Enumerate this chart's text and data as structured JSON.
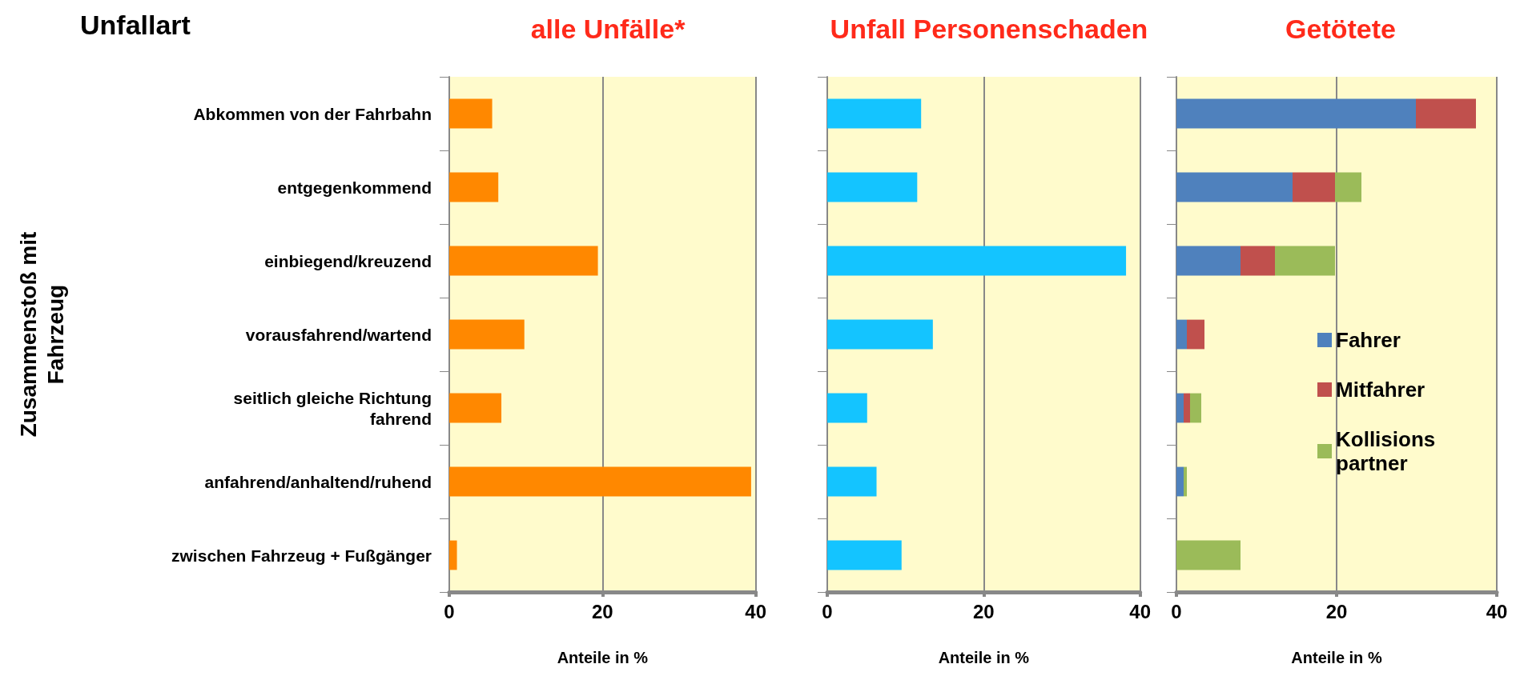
{
  "chart_data": [
    {
      "type": "bar",
      "orientation": "horizontal",
      "title": "alle Unfälle*",
      "ylabel": "Zusammenstoß mit\nFahrzeug",
      "xlabel": "Anteile in %",
      "annotations": [
        "Unfallart"
      ],
      "categories": [
        "Abkommen von der Fahrbahn",
        "entgegenkommend",
        "einbiegend/kreuzend",
        "vorausfahrend/wartend",
        "seitlich gleiche Richtung\nfahrend",
        "anfahrend/anhaltend/ruhend",
        "zwischen Fahrzeug + Fußgänger"
      ],
      "series": [
        {
          "color": "#ff8800",
          "values": [
            5.6,
            6.4,
            19.4,
            9.8,
            6.8,
            39.4,
            1.0
          ]
        }
      ],
      "xlim": [
        0,
        40
      ],
      "xticks": [
        0,
        20,
        40
      ],
      "grid": "x"
    },
    {
      "type": "bar",
      "orientation": "horizontal",
      "title": "Unfall Personenschaden",
      "xlabel": "Anteile in %",
      "tick_labels": "x",
      "categories": [
        null,
        null,
        null,
        null,
        null,
        null,
        null
      ],
      "series": [
        {
          "color": "#14c4ff",
          "values": [
            12.0,
            11.5,
            38.2,
            13.5,
            5.1,
            6.3,
            9.5
          ]
        }
      ],
      "xlim": [
        0,
        40
      ],
      "xticks": [
        0,
        20,
        40
      ],
      "grid": "x"
    },
    {
      "type": "bar",
      "orientation": "horizontal",
      "stacked": true,
      "title": "Getötete",
      "xlabel": "Anteile in %",
      "tick_labels": "x",
      "legend": "right",
      "categories": [
        null,
        null,
        null,
        null,
        null,
        null,
        null
      ],
      "series": [
        {
          "name": "Fahrer",
          "color": "#4f81bd",
          "values": [
            29.9,
            14.5,
            8.0,
            1.3,
            0.9,
            0.9,
            0
          ]
        },
        {
          "name": "Mitfahrer",
          "color": "#c0504d",
          "values": [
            7.5,
            5.3,
            4.3,
            2.2,
            0.8,
            0,
            0
          ]
        },
        {
          "name": "Kollisions\npartner",
          "color": "#9bbb59",
          "values": [
            0,
            3.3,
            7.5,
            0,
            1.4,
            0.4,
            8.0
          ]
        }
      ],
      "xlim": [
        0,
        40
      ],
      "xticks": [
        0,
        20,
        40
      ],
      "grid": "x"
    }
  ]
}
